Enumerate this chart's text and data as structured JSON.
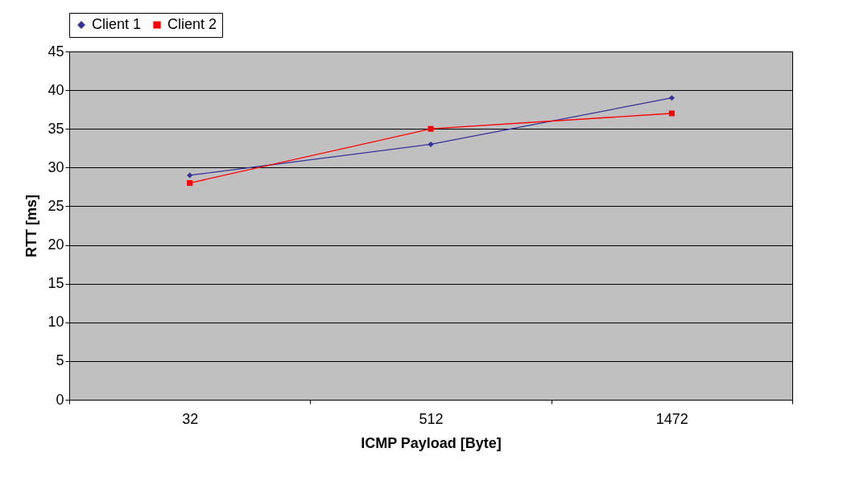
{
  "chart_data": {
    "type": "line",
    "xlabel": "ICMP Payload [Byte]",
    "ylabel": "RTT [ms]",
    "categories": [
      "32",
      "512",
      "1472"
    ],
    "series": [
      {
        "name": "Client 1",
        "color": "#333399",
        "values": [
          29,
          33,
          39
        ],
        "marker": "diamond"
      },
      {
        "name": "Client 2",
        "color": "#ff0000",
        "values": [
          28,
          35,
          37
        ],
        "marker": "square"
      }
    ],
    "ylim": [
      0,
      45
    ],
    "yticks": [
      0,
      5,
      10,
      15,
      20,
      25,
      30,
      35,
      40,
      45
    ],
    "grid": "y",
    "legend": "top",
    "line_style": "solid"
  }
}
